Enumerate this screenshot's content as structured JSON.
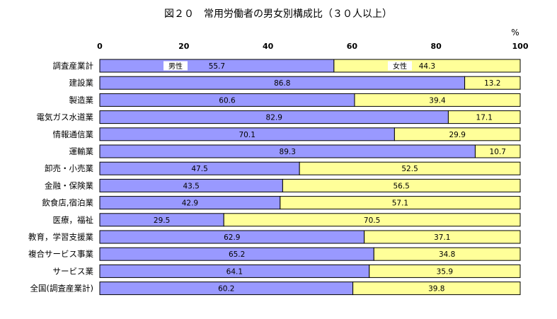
{
  "chart_data": {
    "type": "bar",
    "orientation": "horizontal",
    "stacked": true,
    "title": "図２０　常用労働者の男女別構成比（３０人以上）",
    "unit_label": "%",
    "xlim": [
      0,
      100
    ],
    "xticks": [
      0,
      20,
      40,
      60,
      80,
      100
    ],
    "categories": [
      "調査産業計",
      "建設業",
      "製造業",
      "電気ガス水道業",
      "情報通信業",
      "運輸業",
      "卸売・小売業",
      "金融・保険業",
      "飲食店,宿泊業",
      "医療，福祉",
      "教育，学習支援業",
      "複合サービス事業",
      "サービス業",
      "全国(調査産業計)"
    ],
    "series": [
      {
        "name": "男性",
        "color": "#9999ff",
        "values": [
          55.7,
          86.8,
          60.6,
          82.9,
          70.1,
          89.3,
          47.5,
          43.5,
          42.9,
          29.5,
          62.9,
          65.2,
          64.1,
          60.2
        ],
        "labels": [
          "55.7",
          "86.8",
          "60.6",
          "82.9",
          "70.1",
          "89.3",
          "47.5",
          "43.5",
          "42.9",
          "29.5",
          "62.9",
          "65.2",
          "64.1",
          "60.2"
        ]
      },
      {
        "name": "女性",
        "color": "#ffff99",
        "values": [
          44.3,
          13.2,
          39.4,
          17.1,
          29.9,
          10.7,
          52.5,
          56.5,
          57.1,
          70.5,
          37.1,
          34.8,
          35.9,
          39.8
        ],
        "labels": [
          "44.3",
          "13.2",
          "39.4",
          "17.1",
          "29.9",
          "10.7",
          "52.5",
          "56.5",
          "57.1",
          "70.5",
          "37.1",
          "34.8",
          "35.9",
          "39.8"
        ]
      }
    ],
    "grid": false,
    "legend_placement": "inside-first-bar"
  }
}
